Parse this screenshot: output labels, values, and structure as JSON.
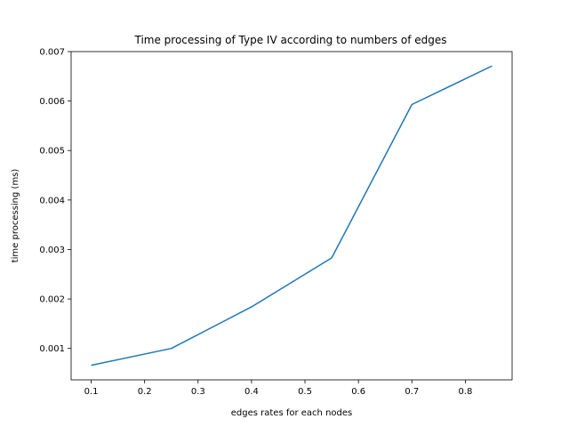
{
  "chart_data": {
    "type": "line",
    "title": "Time processing of Type IV according to numbers of edges",
    "xlabel": "edges rates for each nodes",
    "ylabel": "time processing (ms)",
    "xlim": [
      0.0625,
      0.8875
    ],
    "ylim": [
      0.000365,
      0.007
    ],
    "xticks": [
      "0.1",
      "0.2",
      "0.3",
      "0.4",
      "0.5",
      "0.6",
      "0.7",
      "0.8"
    ],
    "yticks": [
      "0.001",
      "0.002",
      "0.003",
      "0.004",
      "0.005",
      "0.006",
      "0.007"
    ],
    "grid": false,
    "legend": "none",
    "series": [
      {
        "color": "#1f77b4",
        "x": [
          0.1,
          0.25,
          0.4,
          0.55,
          0.7,
          0.85
        ],
        "y": [
          0.00066,
          0.001,
          0.00184,
          0.00283,
          0.00593,
          0.00671
        ]
      }
    ]
  }
}
